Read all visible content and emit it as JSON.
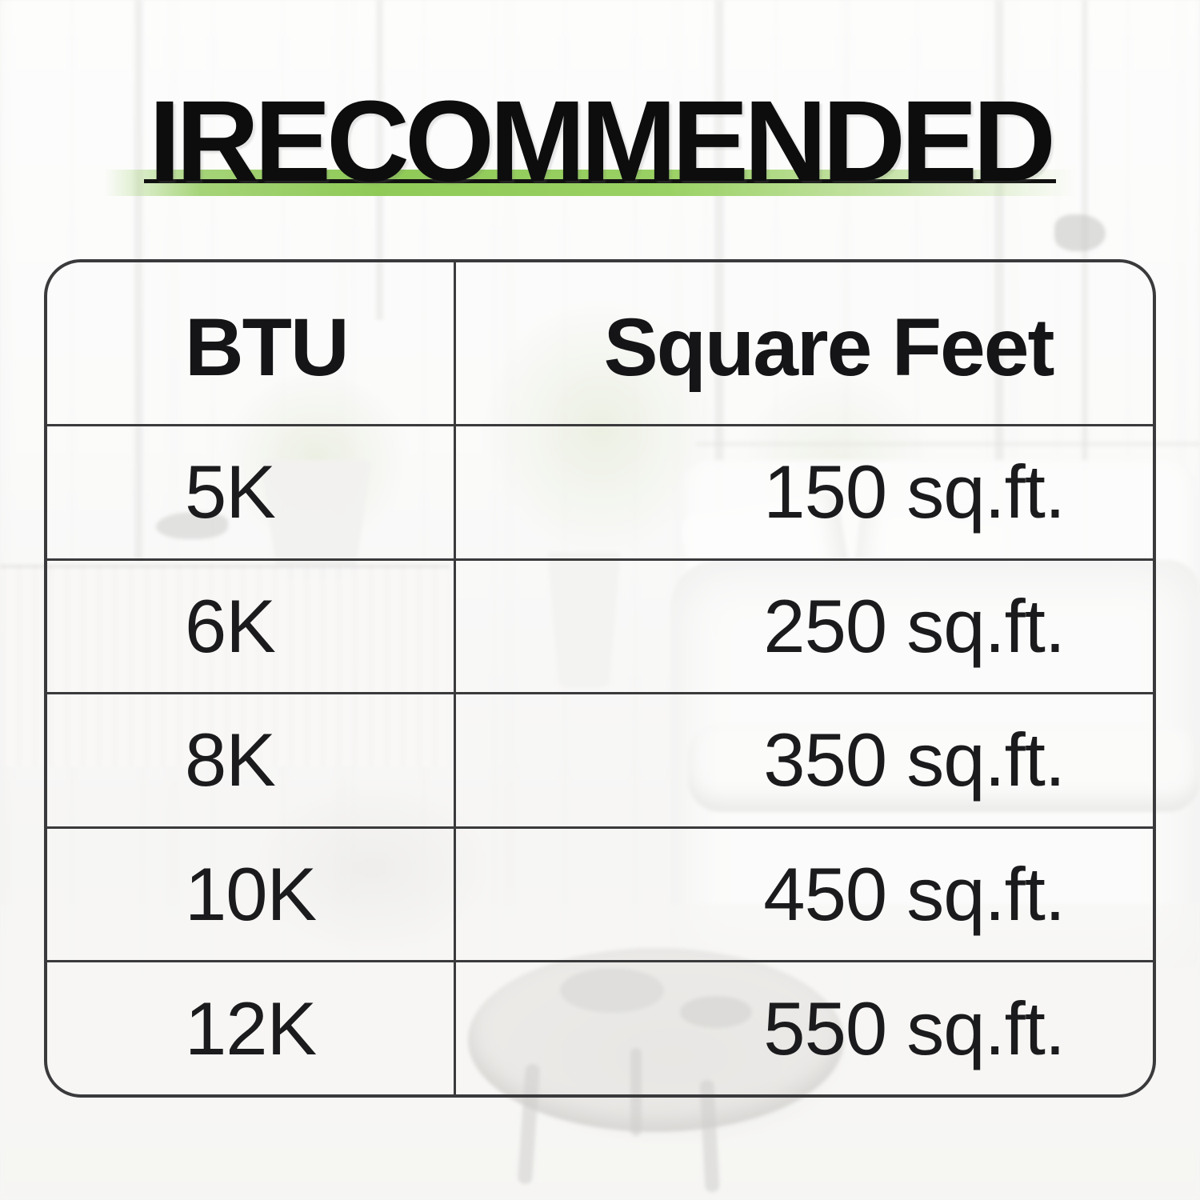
{
  "header": {
    "title": "IRECOMMENDED"
  },
  "chart_data": {
    "type": "table",
    "title": "IRECOMMENDED",
    "columns": [
      "BTU",
      "Square Feet"
    ],
    "rows": [
      [
        "5K",
        "150 sq.ft."
      ],
      [
        "6K",
        "250 sq.ft."
      ],
      [
        "8K",
        "350 sq.ft."
      ],
      [
        "10K",
        "450 sq.ft."
      ],
      [
        "12K",
        "550 sq.ft."
      ]
    ]
  },
  "colors": {
    "accent_green": "#8fca57",
    "underline": "#111111",
    "table_border": "#3a3a3c",
    "text": "#1b1b1d",
    "background": "#f5f5f3"
  }
}
